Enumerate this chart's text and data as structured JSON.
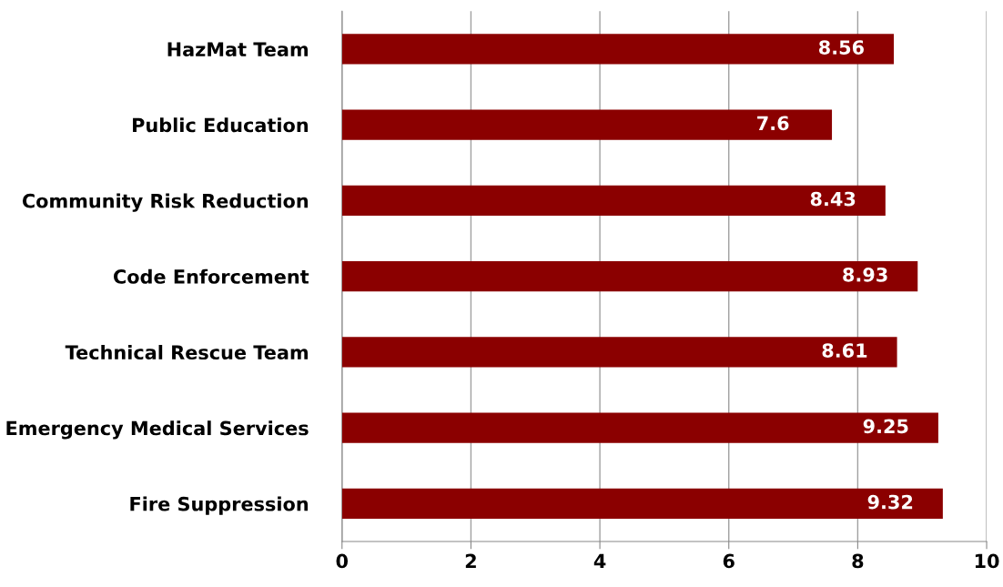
{
  "chart_data": {
    "type": "bar",
    "orientation": "horizontal",
    "categories": [
      "HazMat Team",
      "Public Education",
      "Community Risk Reduction",
      "Code Enforcement",
      "Technical Rescue Team",
      "Emergency Medical Services",
      "Fire Suppression"
    ],
    "values": [
      8.56,
      7.6,
      8.43,
      8.93,
      8.61,
      9.25,
      9.32
    ],
    "color": "#8b0000",
    "xlim": [
      0,
      10
    ],
    "xticks": [
      0,
      2,
      4,
      6,
      8,
      10
    ],
    "grid": "x",
    "data_labels": true,
    "legend": false
  }
}
